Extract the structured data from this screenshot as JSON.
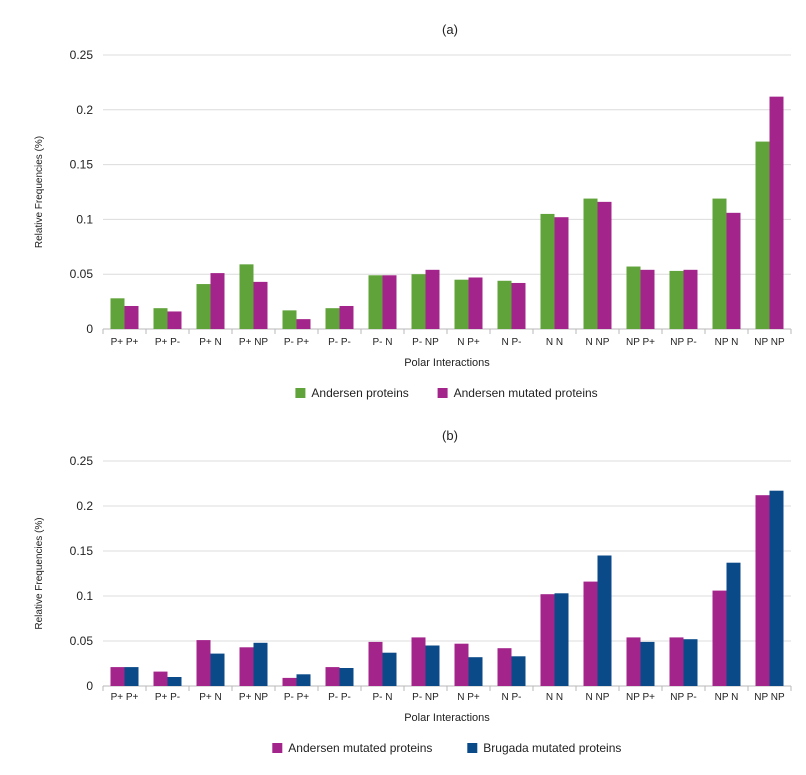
{
  "chart_data": [
    {
      "type": "bar",
      "title": "(a)",
      "xlabel": "Polar Interactions",
      "ylabel": "Relative Frequencies (%)",
      "ylim": [
        0,
        0.25
      ],
      "yticks": [
        0,
        0.05,
        0.1,
        0.15,
        0.2,
        0.25
      ],
      "ytick_labels": [
        "0",
        "0.05",
        "0.1",
        "0.15",
        "0.2",
        "0.25"
      ],
      "grid": "y-major",
      "legend_position": "bottom-center",
      "categories": [
        "P+ P+",
        "P+ P-",
        "P+ N",
        "P+ NP",
        "P- P+",
        "P- P-",
        "P- N",
        "P- NP",
        "N P+",
        "N P-",
        "N N",
        "N NP",
        "NP P+",
        "NP P-",
        "NP N",
        "NP NP"
      ],
      "series": [
        {
          "name": "Andersen proteins",
          "color": "#60a33a",
          "values": [
            0.028,
            0.019,
            0.041,
            0.059,
            0.017,
            0.019,
            0.049,
            0.05,
            0.045,
            0.044,
            0.105,
            0.119,
            0.057,
            0.053,
            0.119,
            0.171
          ]
        },
        {
          "name": "Andersen mutated proteins",
          "color": "#a3248a",
          "values": [
            0.021,
            0.016,
            0.051,
            0.043,
            0.009,
            0.021,
            0.049,
            0.054,
            0.047,
            0.042,
            0.102,
            0.116,
            0.054,
            0.054,
            0.106,
            0.212
          ]
        }
      ]
    },
    {
      "type": "bar",
      "title": "(b)",
      "xlabel": "Polar Interactions",
      "ylabel": "Relative Frequencies (%)",
      "ylim": [
        0,
        0.25
      ],
      "yticks": [
        0,
        0.05,
        0.1,
        0.15,
        0.2,
        0.25
      ],
      "ytick_labels": [
        "0",
        "0.05",
        "0.1",
        "0.15",
        "0.2",
        "0.25"
      ],
      "grid": "y-major",
      "legend_position": "bottom-center",
      "categories": [
        "P+ P+",
        "P+ P-",
        "P+ N",
        "P+ NP",
        "P- P+",
        "P- P-",
        "P- N",
        "P- NP",
        "N P+",
        "N P-",
        "N N",
        "N NP",
        "NP P+",
        "NP P-",
        "NP N",
        "NP NP"
      ],
      "series": [
        {
          "name": "Andersen mutated proteins",
          "color": "#a3248a",
          "values": [
            0.021,
            0.016,
            0.051,
            0.043,
            0.009,
            0.021,
            0.049,
            0.054,
            0.047,
            0.042,
            0.102,
            0.116,
            0.054,
            0.054,
            0.106,
            0.212
          ]
        },
        {
          "name": "Brugada mutated proteins",
          "color": "#0b4a88",
          "values": [
            0.021,
            0.01,
            0.036,
            0.048,
            0.013,
            0.02,
            0.037,
            0.045,
            0.032,
            0.033,
            0.103,
            0.145,
            0.049,
            0.052,
            0.137,
            0.217
          ]
        }
      ]
    }
  ]
}
